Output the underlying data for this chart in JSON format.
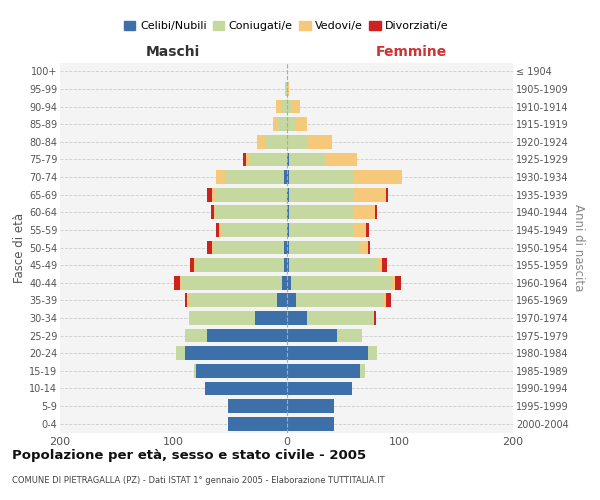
{
  "age_groups": [
    "100+",
    "95-99",
    "90-94",
    "85-89",
    "80-84",
    "75-79",
    "70-74",
    "65-69",
    "60-64",
    "55-59",
    "50-54",
    "45-49",
    "40-44",
    "35-39",
    "30-34",
    "25-29",
    "20-24",
    "15-19",
    "10-14",
    "5-9",
    "0-4"
  ],
  "birth_years": [
    "≤ 1904",
    "1905-1909",
    "1910-1914",
    "1915-1919",
    "1920-1924",
    "1925-1929",
    "1930-1934",
    "1935-1939",
    "1940-1944",
    "1945-1949",
    "1950-1954",
    "1955-1959",
    "1960-1964",
    "1965-1969",
    "1970-1974",
    "1975-1979",
    "1980-1984",
    "1985-1989",
    "1990-1994",
    "1995-1999",
    "2000-2004"
  ],
  "male": {
    "celibi": [
      0,
      0,
      0,
      0,
      0,
      0,
      2,
      0,
      0,
      0,
      2,
      2,
      4,
      8,
      28,
      70,
      90,
      80,
      72,
      52,
      52
    ],
    "coniugati": [
      0,
      1,
      4,
      8,
      18,
      32,
      52,
      62,
      62,
      58,
      62,
      78,
      88,
      78,
      58,
      20,
      8,
      2,
      0,
      0,
      0
    ],
    "vedovi": [
      0,
      0,
      5,
      4,
      8,
      4,
      8,
      4,
      2,
      2,
      2,
      2,
      2,
      2,
      0,
      0,
      0,
      0,
      0,
      0,
      0
    ],
    "divorziati": [
      0,
      0,
      0,
      0,
      0,
      2,
      0,
      4,
      3,
      2,
      4,
      3,
      5,
      2,
      0,
      0,
      0,
      0,
      0,
      0,
      0
    ]
  },
  "female": {
    "nubili": [
      0,
      0,
      0,
      0,
      0,
      2,
      2,
      2,
      2,
      2,
      2,
      2,
      4,
      8,
      18,
      45,
      72,
      65,
      58,
      42,
      42
    ],
    "coniugate": [
      0,
      0,
      4,
      8,
      18,
      32,
      58,
      58,
      58,
      58,
      62,
      78,
      88,
      78,
      58,
      22,
      8,
      4,
      0,
      0,
      0
    ],
    "vedove": [
      0,
      2,
      8,
      10,
      22,
      28,
      42,
      28,
      18,
      10,
      8,
      4,
      4,
      2,
      1,
      0,
      0,
      0,
      0,
      0,
      0
    ],
    "divorziate": [
      0,
      0,
      0,
      0,
      0,
      0,
      0,
      2,
      2,
      3,
      2,
      5,
      5,
      4,
      2,
      0,
      0,
      0,
      0,
      0,
      0
    ]
  },
  "color_celibi": "#3d6fa8",
  "color_coniugati": "#c5d8a0",
  "color_vedovi": "#f5c87a",
  "color_divorziati": "#cc2222",
  "xlim": 200,
  "title": "Popolazione per età, sesso e stato civile - 2005",
  "subtitle": "COMUNE DI PIETRAGALLA (PZ) - Dati ISTAT 1° gennaio 2005 - Elaborazione TUTTITALIA.IT",
  "ylabel_left": "Fasce di età",
  "ylabel_right": "Anni di nascita",
  "xlabel_left": "Maschi",
  "xlabel_right": "Femmine",
  "bg_color": "#f4f4f4",
  "grid_color": "#cccccc"
}
